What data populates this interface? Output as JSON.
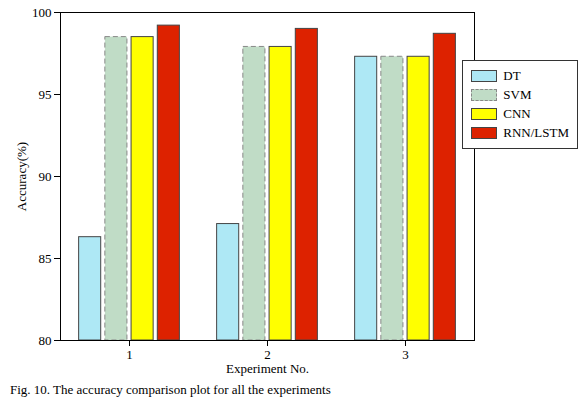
{
  "chart_data": {
    "type": "bar",
    "caption": "Fig. 10.  The accuracy comparison plot for all the experiments",
    "x_label": "Experiment No.",
    "y_label": "Accuracy(%)",
    "categories": [
      1,
      2,
      3
    ],
    "series": [
      {
        "name": "DT",
        "color": "#aee8f5",
        "values": [
          86.3,
          87.1,
          97.3
        ]
      },
      {
        "name": "SVM",
        "color": "#c0dcc6",
        "line_style": "dashed",
        "values": [
          98.5,
          97.9,
          97.3
        ]
      },
      {
        "name": "CNN",
        "color": "#ffff00",
        "values": [
          98.5,
          97.9,
          97.3
        ]
      },
      {
        "name": "RNN/LSTM",
        "color": "#dd2200",
        "values": [
          99.2,
          99.0,
          98.7
        ]
      }
    ],
    "ylim": [
      80,
      100
    ],
    "yticks": [
      80,
      85,
      90,
      95,
      100
    ],
    "legend": "right",
    "grid": false
  }
}
